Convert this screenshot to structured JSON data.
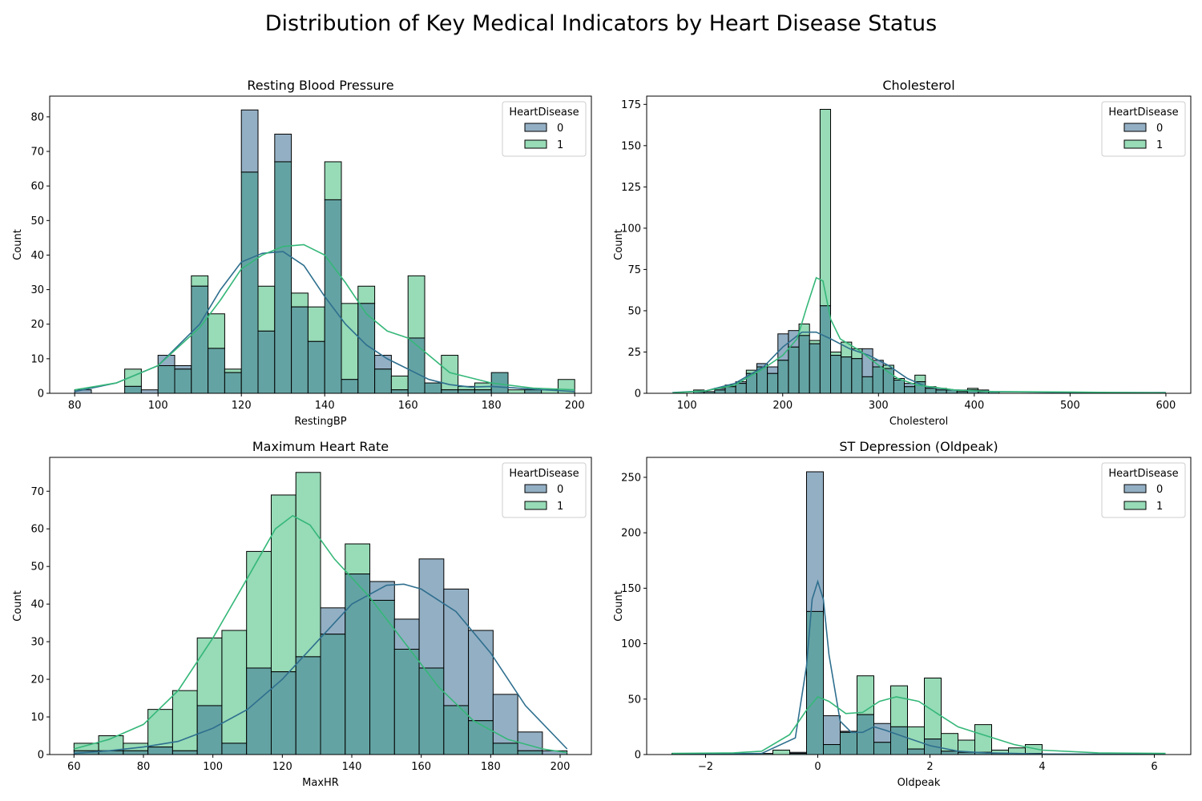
{
  "title": "Distribution of Key Medical Indicators by Heart Disease Status",
  "colors": {
    "group0": "#2e6f8e",
    "group1": "#35b779",
    "group0_fill": "#93afc4",
    "group1_fill": "#97dbb7",
    "overlap_fill": "#64a3a3"
  },
  "legend": {
    "title": "HeartDisease",
    "labels": [
      "0",
      "1"
    ]
  },
  "chart_data": [
    {
      "type": "histogram",
      "title": "Resting Blood Pressure",
      "xlabel": "RestingBP",
      "ylabel": "Count",
      "xlim": [
        74,
        204
      ],
      "ylim": [
        0,
        86
      ],
      "xticks": [
        80,
        100,
        120,
        140,
        160,
        180,
        200
      ],
      "yticks": [
        0,
        10,
        20,
        30,
        40,
        50,
        60,
        70,
        80
      ],
      "legend_position": "top-right",
      "bins": [
        80,
        84,
        88,
        92,
        96,
        100,
        104,
        108,
        112,
        116,
        120,
        124,
        128,
        132,
        136,
        140,
        144,
        148,
        152,
        156,
        160,
        164,
        168,
        172,
        176,
        180,
        184,
        188,
        192,
        196,
        200
      ],
      "series": [
        {
          "name": "0",
          "counts": [
            1,
            0,
            0,
            2,
            1,
            11,
            8,
            31,
            13,
            6,
            82,
            18,
            75,
            25,
            15,
            56,
            4,
            26,
            11,
            1,
            16,
            3,
            1,
            1,
            1,
            6,
            0,
            1,
            0,
            0
          ]
        },
        {
          "name": "1",
          "counts": [
            0,
            0,
            0,
            7,
            0,
            8,
            7,
            34,
            23,
            7,
            64,
            31,
            67,
            29,
            25,
            67,
            26,
            31,
            7,
            5,
            34,
            3,
            11,
            2,
            3,
            6,
            1,
            1,
            1,
            4
          ]
        }
      ],
      "kde": [
        {
          "name": "0",
          "points": [
            [
              80,
              0.5
            ],
            [
              90,
              3
            ],
            [
              100,
              8
            ],
            [
              110,
              20
            ],
            [
              115,
              30
            ],
            [
              120,
              38
            ],
            [
              125,
              40.5
            ],
            [
              130,
              41
            ],
            [
              135,
              37
            ],
            [
              140,
              28
            ],
            [
              145,
              20
            ],
            [
              150,
              14
            ],
            [
              155,
              10
            ],
            [
              160,
              7
            ],
            [
              165,
              4
            ],
            [
              170,
              2.5
            ],
            [
              175,
              1.8
            ],
            [
              180,
              2
            ],
            [
              185,
              1.6
            ],
            [
              190,
              1.2
            ],
            [
              200,
              0.5
            ]
          ]
        },
        {
          "name": "1",
          "points": [
            [
              80,
              1
            ],
            [
              90,
              3
            ],
            [
              100,
              8
            ],
            [
              110,
              19
            ],
            [
              115,
              27
            ],
            [
              120,
              36
            ],
            [
              125,
              40
            ],
            [
              130,
              42.5
            ],
            [
              135,
              43
            ],
            [
              140,
              40
            ],
            [
              145,
              32
            ],
            [
              150,
              23
            ],
            [
              155,
              18
            ],
            [
              160,
              16
            ],
            [
              165,
              11
            ],
            [
              170,
              6
            ],
            [
              175,
              4.5
            ],
            [
              180,
              3
            ],
            [
              190,
              1.5
            ],
            [
              200,
              1
            ]
          ]
        }
      ]
    },
    {
      "type": "histogram",
      "title": "Cholesterol",
      "xlabel": "Cholesterol",
      "ylabel": "Count",
      "xlim": [
        58,
        626
      ],
      "ylim": [
        0,
        180
      ],
      "xticks": [
        100,
        200,
        300,
        400,
        500,
        600
      ],
      "yticks": [
        0,
        25,
        50,
        75,
        100,
        125,
        150,
        175
      ],
      "legend_position": "top-right",
      "bins": [
        85,
        96,
        107,
        118,
        129,
        140,
        151,
        162,
        173,
        184,
        195,
        206,
        217,
        228,
        239,
        250,
        261,
        272,
        283,
        294,
        305,
        316,
        327,
        338,
        349,
        360,
        371,
        382,
        393,
        404,
        415,
        426
      ],
      "series": [
        {
          "name": "0",
          "counts": [
            0,
            0,
            1,
            1,
            3,
            5,
            7,
            12,
            18,
            16,
            36,
            38,
            35,
            30,
            53,
            23,
            22,
            21,
            27,
            20,
            15,
            8,
            6,
            7,
            4,
            3,
            2,
            1,
            2,
            2,
            1
          ]
        },
        {
          "name": "1",
          "counts": [
            0,
            0,
            2,
            1,
            2,
            4,
            6,
            14,
            16,
            12,
            20,
            28,
            42,
            32,
            172,
            25,
            31,
            27,
            10,
            16,
            17,
            9,
            4,
            11,
            3,
            2,
            2,
            2,
            3,
            1,
            1
          ]
        }
      ],
      "kde": [
        {
          "name": "0",
          "points": [
            [
              85,
              0.5
            ],
            [
              120,
              1.5
            ],
            [
              150,
              6
            ],
            [
              180,
              16
            ],
            [
              200,
              28
            ],
            [
              220,
              37
            ],
            [
              235,
              37
            ],
            [
              250,
              33
            ],
            [
              270,
              27
            ],
            [
              290,
              23
            ],
            [
              310,
              17
            ],
            [
              330,
              9
            ],
            [
              350,
              4
            ],
            [
              380,
              2
            ],
            [
              420,
              1
            ],
            [
              500,
              0.5
            ],
            [
              600,
              0.5
            ]
          ]
        },
        {
          "name": "1",
          "points": [
            [
              85,
              0.3
            ],
            [
              120,
              1.5
            ],
            [
              150,
              5
            ],
            [
              180,
              15
            ],
            [
              200,
              23
            ],
            [
              215,
              33
            ],
            [
              225,
              52
            ],
            [
              235,
              70
            ],
            [
              242,
              68
            ],
            [
              250,
              45
            ],
            [
              260,
              33
            ],
            [
              280,
              26
            ],
            [
              300,
              17
            ],
            [
              320,
              9
            ],
            [
              340,
              5
            ],
            [
              380,
              2
            ],
            [
              420,
              1
            ],
            [
              500,
              0.8
            ],
            [
              550,
              0.5
            ],
            [
              600,
              0.3
            ]
          ]
        }
      ]
    },
    {
      "type": "histogram",
      "title": "Maximum Heart Rate",
      "xlabel": "MaxHR",
      "ylabel": "Count",
      "xlim": [
        53,
        209
      ],
      "ylim": [
        0,
        79
      ],
      "xticks": [
        60,
        80,
        100,
        120,
        140,
        160,
        180,
        200
      ],
      "yticks": [
        0,
        10,
        20,
        30,
        40,
        50,
        60,
        70
      ],
      "legend_position": "top-right",
      "bins": [
        60,
        67.1,
        74.2,
        81.3,
        88.4,
        95.5,
        102.6,
        109.7,
        116.8,
        123.9,
        131,
        138.1,
        145.2,
        152.3,
        159.4,
        166.5,
        173.6,
        180.7,
        187.8,
        194.9,
        202
      ],
      "series": [
        {
          "name": "0",
          "counts": [
            1,
            1,
            1,
            2,
            1,
            13,
            3,
            23,
            22,
            26,
            39,
            48,
            46,
            36,
            52,
            44,
            33,
            16,
            6,
            1
          ]
        },
        {
          "name": "1",
          "counts": [
            3,
            5,
            3,
            12,
            17,
            31,
            33,
            54,
            69,
            75,
            32,
            56,
            41,
            28,
            23,
            13,
            9,
            3,
            1,
            0
          ]
        }
      ],
      "kde": [
        {
          "name": "0",
          "points": [
            [
              60,
              0.3
            ],
            [
              70,
              1
            ],
            [
              80,
              2
            ],
            [
              90,
              3.5
            ],
            [
              100,
              7
            ],
            [
              110,
              12
            ],
            [
              120,
              20
            ],
            [
              130,
              30
            ],
            [
              140,
              40
            ],
            [
              150,
              45
            ],
            [
              155,
              45.3
            ],
            [
              160,
              44
            ],
            [
              170,
              38
            ],
            [
              180,
              27
            ],
            [
              190,
              13
            ],
            [
              202,
              1.5
            ]
          ]
        },
        {
          "name": "1",
          "points": [
            [
              60,
              1.5
            ],
            [
              70,
              4
            ],
            [
              80,
              8
            ],
            [
              90,
              17
            ],
            [
              100,
              31
            ],
            [
              110,
              47
            ],
            [
              118,
              60
            ],
            [
              123,
              63.5
            ],
            [
              128,
              61
            ],
            [
              135,
              52
            ],
            [
              145,
              42
            ],
            [
              155,
              30
            ],
            [
              165,
              18
            ],
            [
              175,
              9
            ],
            [
              185,
              4
            ],
            [
              195,
              1.5
            ],
            [
              202,
              0.5
            ]
          ]
        }
      ]
    },
    {
      "type": "histogram",
      "title": "ST Depression (Oldpeak)",
      "xlabel": "Oldpeak",
      "ylabel": "Count",
      "xlim": [
        -3.05,
        6.65
      ],
      "ylim": [
        0,
        268
      ],
      "xticks": [
        -2,
        0,
        2,
        4,
        6
      ],
      "yticks": [
        0,
        50,
        100,
        150,
        200,
        250
      ],
      "legend_position": "top-right",
      "bins": [
        -2.6,
        -2.3,
        -2.0,
        -1.7,
        -1.4,
        -1.1,
        -0.8,
        -0.5,
        -0.2,
        0.1,
        0.4,
        0.7,
        1.0,
        1.3,
        1.6,
        1.9,
        2.2,
        2.5,
        2.8,
        3.1,
        3.4,
        3.7,
        4.0
      ],
      "series": [
        {
          "name": "0",
          "counts": [
            0,
            0,
            0,
            0,
            0,
            1,
            0,
            2,
            255,
            35,
            21,
            36,
            28,
            25,
            5,
            14,
            3,
            2,
            2,
            1,
            0,
            1
          ]
        },
        {
          "name": "1",
          "counts": [
            1,
            0,
            0,
            0,
            0,
            1,
            4,
            1,
            129,
            9,
            20,
            71,
            11,
            62,
            25,
            69,
            19,
            13,
            27,
            4,
            6,
            9
          ]
        }
      ],
      "kde": [
        {
          "name": "0",
          "points": [
            [
              -2.6,
              0.3
            ],
            [
              -1.0,
              1
            ],
            [
              -0.4,
              15
            ],
            [
              -0.2,
              80
            ],
            [
              -0.1,
              140
            ],
            [
              0,
              156
            ],
            [
              0.1,
              140
            ],
            [
              0.2,
              90
            ],
            [
              0.4,
              30
            ],
            [
              0.6,
              20
            ],
            [
              0.8,
              20
            ],
            [
              1.0,
              25
            ],
            [
              1.2,
              22
            ],
            [
              1.6,
              15
            ],
            [
              2.0,
              8
            ],
            [
              2.5,
              3
            ],
            [
              3.0,
              1.5
            ],
            [
              4.0,
              0.5
            ],
            [
              6.2,
              0.3
            ]
          ]
        },
        {
          "name": "1",
          "points": [
            [
              -2.6,
              1
            ],
            [
              -1.5,
              1.5
            ],
            [
              -1.0,
              3
            ],
            [
              -0.5,
              18
            ],
            [
              -0.2,
              40
            ],
            [
              0,
              52
            ],
            [
              0.2,
              48
            ],
            [
              0.5,
              37
            ],
            [
              0.8,
              38
            ],
            [
              1.1,
              48
            ],
            [
              1.4,
              52
            ],
            [
              1.8,
              48
            ],
            [
              2.1,
              38
            ],
            [
              2.5,
              25
            ],
            [
              3.0,
              17
            ],
            [
              3.5,
              9
            ],
            [
              4.0,
              4
            ],
            [
              5.0,
              1.5
            ],
            [
              6.2,
              1
            ]
          ]
        }
      ]
    }
  ]
}
